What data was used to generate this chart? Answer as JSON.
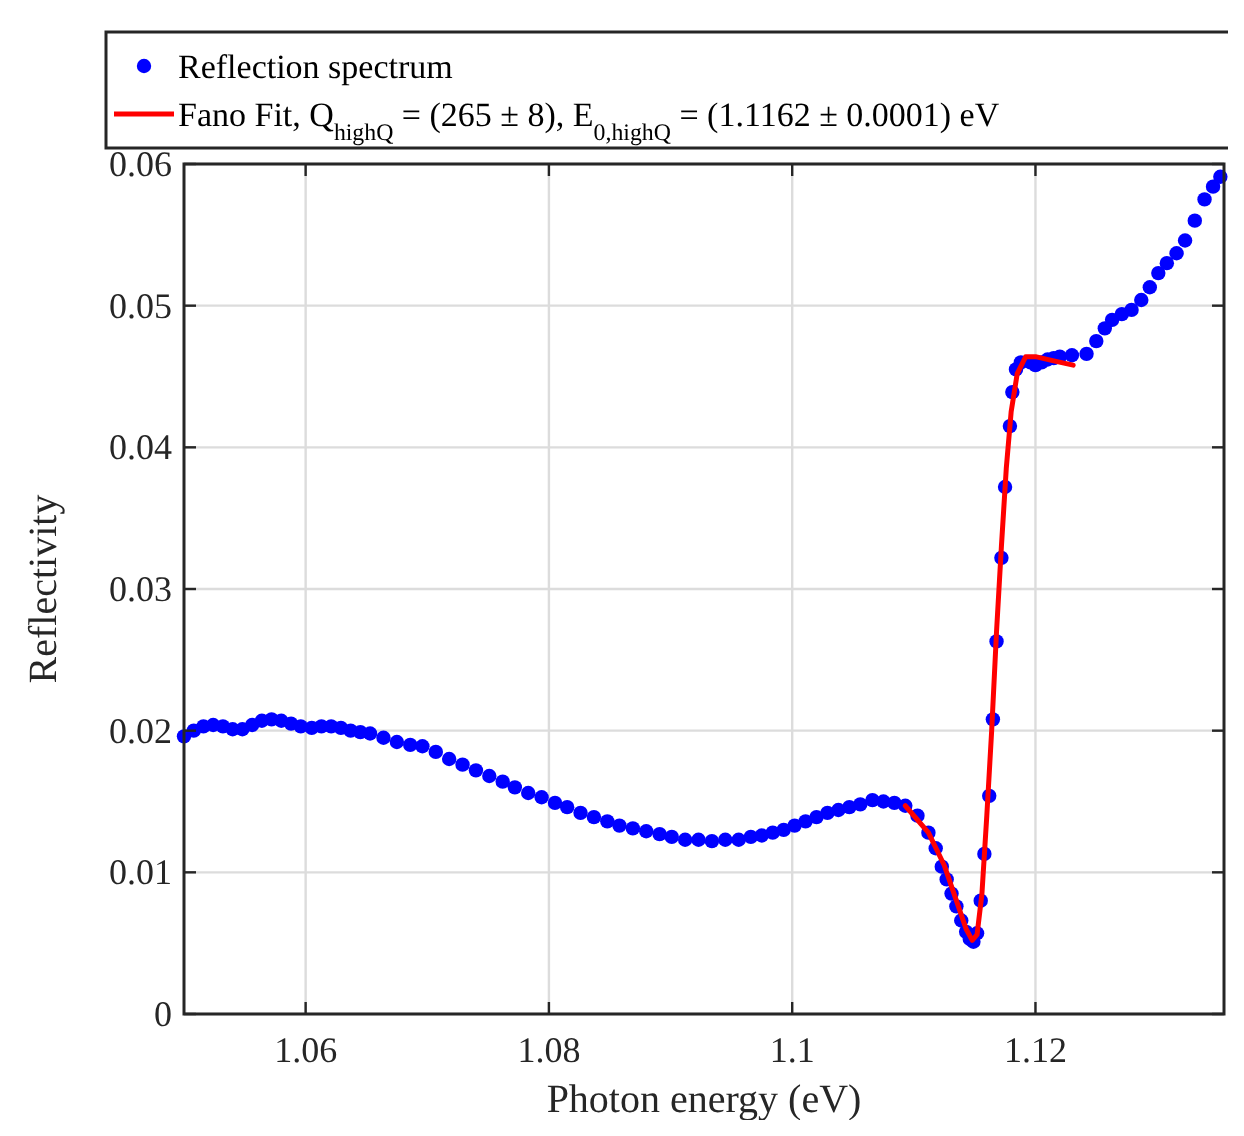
{
  "chart_data": {
    "type": "scatter",
    "xlabel": "Photon energy (eV)",
    "ylabel": "Reflectivity",
    "xlim": [
      1.05,
      1.1355
    ],
    "ylim": [
      0,
      0.06
    ],
    "xticks": [
      1.06,
      1.08,
      1.1,
      1.12
    ],
    "yticks": [
      0,
      0.01,
      0.02,
      0.03,
      0.04,
      0.05,
      0.06
    ],
    "grid": true,
    "legend": "top",
    "series": [
      {
        "name": "Reflection spectrum",
        "marker": "circle",
        "color": "#0000ff",
        "x": [
          1.05,
          1.0508,
          1.0516,
          1.0524,
          1.0532,
          1.054,
          1.0548,
          1.0556,
          1.0564,
          1.0572,
          1.058,
          1.0588,
          1.0596,
          1.0605,
          1.0613,
          1.0621,
          1.0629,
          1.0637,
          1.0645,
          1.0653,
          1.0664,
          1.0675,
          1.0686,
          1.0696,
          1.0707,
          1.0718,
          1.0729,
          1.074,
          1.0751,
          1.0762,
          1.0772,
          1.0783,
          1.0794,
          1.0805,
          1.0815,
          1.0826,
          1.0837,
          1.0848,
          1.0858,
          1.0869,
          1.088,
          1.0891,
          1.0901,
          1.0912,
          1.0923,
          1.0934,
          1.0945,
          1.0956,
          1.0966,
          1.0975,
          1.0984,
          1.0993,
          1.1002,
          1.1011,
          1.102,
          1.1029,
          1.1038,
          1.1047,
          1.1056,
          1.1066,
          1.1075,
          1.1084,
          1.1093,
          1.1103,
          1.1112,
          1.1118,
          1.1123,
          1.1127,
          1.1131,
          1.1135,
          1.1139,
          1.1143,
          1.1146,
          1.1149,
          1.1152,
          1.1155,
          1.1158,
          1.1162,
          1.1165,
          1.1168,
          1.1172,
          1.1175,
          1.1179,
          1.1181,
          1.1184,
          1.1188,
          1.1196,
          1.12,
          1.1205,
          1.121,
          1.1215,
          1.122,
          1.123,
          1.1242,
          1.125,
          1.1257,
          1.1263,
          1.1271,
          1.1279,
          1.1287,
          1.1294,
          1.1301,
          1.1308,
          1.1316,
          1.1323,
          1.1331,
          1.1339,
          1.1346,
          1.1352
        ],
        "values": [
          0.0196,
          0.02,
          0.0203,
          0.0204,
          0.0203,
          0.0201,
          0.0201,
          0.0204,
          0.0207,
          0.0208,
          0.0207,
          0.0205,
          0.0203,
          0.0202,
          0.0203,
          0.0203,
          0.0202,
          0.02,
          0.0199,
          0.0198,
          0.0195,
          0.0192,
          0.019,
          0.0189,
          0.0185,
          0.018,
          0.0176,
          0.0172,
          0.0168,
          0.0164,
          0.016,
          0.0156,
          0.0153,
          0.0149,
          0.0146,
          0.0142,
          0.0139,
          0.0136,
          0.0133,
          0.0131,
          0.0129,
          0.0127,
          0.0125,
          0.0123,
          0.0123,
          0.0122,
          0.0123,
          0.0123,
          0.0125,
          0.0126,
          0.0128,
          0.013,
          0.0133,
          0.0136,
          0.0139,
          0.0142,
          0.0144,
          0.0146,
          0.0148,
          0.0151,
          0.015,
          0.0149,
          0.0147,
          0.014,
          0.0128,
          0.0117,
          0.0104,
          0.0095,
          0.0085,
          0.0076,
          0.0066,
          0.0058,
          0.0053,
          0.0051,
          0.0057,
          0.008,
          0.0113,
          0.0154,
          0.0208,
          0.0263,
          0.0322,
          0.0372,
          0.0415,
          0.0439,
          0.0455,
          0.046,
          0.046,
          0.0458,
          0.046,
          0.0462,
          0.0463,
          0.0464,
          0.0465,
          0.0466,
          0.0475,
          0.0484,
          0.049,
          0.0494,
          0.0497,
          0.0504,
          0.0513,
          0.0523,
          0.053,
          0.0537,
          0.0546,
          0.056,
          0.0575,
          0.0584,
          0.0591
        ]
      },
      {
        "name": "Fano Fit, Q$_{highQ}$ = (265 ± 8), E$_{0,highQ}$ = (1.1162 ± 0.0001) eV",
        "type": "line",
        "marker": "none",
        "line_style": "solid",
        "color": "#ff0000",
        "x": [
          1.1093,
          1.1112,
          1.1125,
          1.1135,
          1.1143,
          1.1148,
          1.1152,
          1.1156,
          1.116,
          1.1164,
          1.1168,
          1.1172,
          1.1176,
          1.118,
          1.1185,
          1.1192,
          1.12,
          1.1215,
          1.1231
        ],
        "values": [
          0.0147,
          0.0128,
          0.0105,
          0.008,
          0.006,
          0.0052,
          0.0056,
          0.0085,
          0.014,
          0.02,
          0.027,
          0.033,
          0.0385,
          0.0425,
          0.0452,
          0.0464,
          0.0464,
          0.0461,
          0.0458
        ]
      }
    ]
  }
}
